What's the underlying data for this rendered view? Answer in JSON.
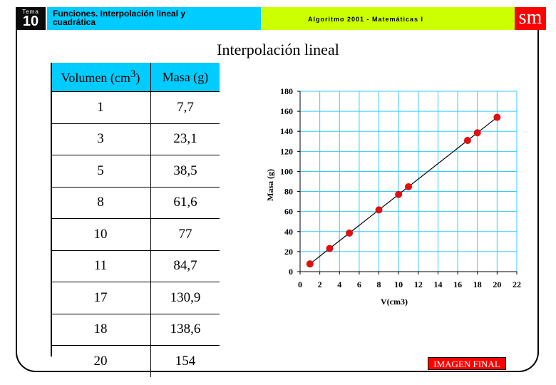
{
  "header": {
    "tema_label": "Tema",
    "tema_number": "10",
    "title_line1": "Funciones. Interpolación lineal y",
    "title_line2": "cuadrática",
    "subtitle": "Algoritmo 2001 - Matemáticas I",
    "logo": "sm",
    "colors": {
      "tema": "#0a0a0a",
      "title": "#00ccff",
      "subtitle": "#ccff00",
      "logo": "#ff0000"
    }
  },
  "page_title": "Interpolación lineal",
  "table": {
    "headers": [
      "Volumen (cm³)",
      "Masa (g)"
    ],
    "rows": [
      [
        "1",
        "7,7"
      ],
      [
        "3",
        "23,1"
      ],
      [
        "5",
        "38,5"
      ],
      [
        "8",
        "61,6"
      ],
      [
        "10",
        "77"
      ],
      [
        "11",
        "84,7"
      ],
      [
        "17",
        "130,9"
      ],
      [
        "18",
        "138,6"
      ],
      [
        "20",
        "154"
      ]
    ]
  },
  "chart_data": {
    "type": "scatter",
    "xlabel": "V(cm3)",
    "ylabel": "Masa (g)",
    "xlim": [
      0,
      22
    ],
    "ylim": [
      0,
      180
    ],
    "xticks": [
      "0",
      "2",
      "4",
      "6",
      "8",
      "10",
      "12",
      "14",
      "16",
      "18",
      "20",
      "22"
    ],
    "yticks": [
      "0",
      "20",
      "40",
      "60",
      "80",
      "100",
      "120",
      "140",
      "160",
      "180"
    ],
    "grid": true,
    "x": [
      1,
      3,
      5,
      8,
      10,
      11,
      17,
      18,
      20
    ],
    "y": [
      7.7,
      23.1,
      38.5,
      61.6,
      77,
      84.7,
      130.9,
      138.6,
      154
    ],
    "trendline": true,
    "marker_color": "#e01010",
    "grid_color": "#33ccff"
  },
  "button": {
    "final_label": "IMAGEN FINAL"
  }
}
